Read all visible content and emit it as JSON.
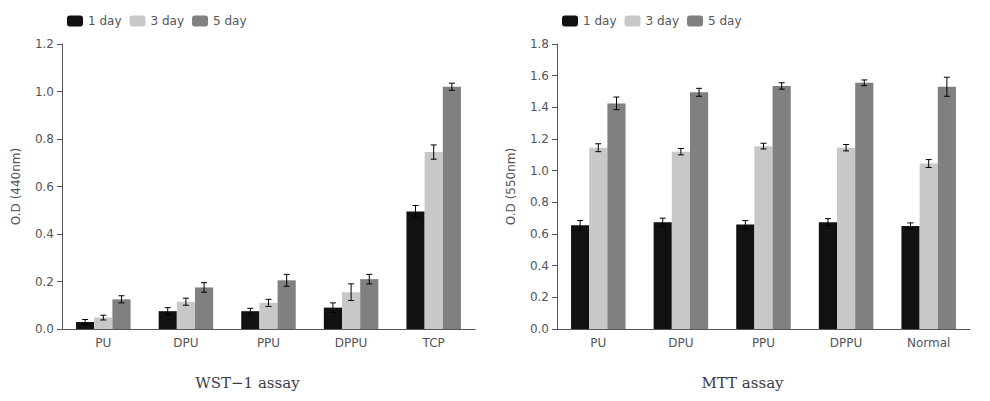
{
  "chart_data": [
    {
      "type": "bar",
      "title": "WST−1 assay",
      "categories": [
        "PU",
        "DPU",
        "PPU",
        "DPPU",
        "TCP"
      ],
      "series": [
        {
          "name": "1 day",
          "color": "#111111",
          "values": [
            0.03,
            0.075,
            0.075,
            0.09,
            0.495
          ],
          "errors": [
            0.01,
            0.015,
            0.012,
            0.02,
            0.025
          ]
        },
        {
          "name": "3 day",
          "color": "#c8c8c8",
          "values": [
            0.048,
            0.115,
            0.11,
            0.155,
            0.745
          ],
          "errors": [
            0.01,
            0.015,
            0.015,
            0.035,
            0.03
          ]
        },
        {
          "name": "5 day",
          "color": "#808080",
          "values": [
            0.125,
            0.175,
            0.205,
            0.21,
            1.02
          ],
          "errors": [
            0.015,
            0.02,
            0.025,
            0.02,
            0.015
          ]
        }
      ],
      "ylabel": "O.D (440nm)",
      "ylim": [
        0,
        1.2
      ],
      "yticks": [
        {
          "value": 0.0,
          "label": "0.0"
        },
        0.2,
        0.4,
        0.6,
        0.8,
        {
          "value": 1.0,
          "label": "1.0"
        },
        1.2
      ],
      "legend": "upper left",
      "grid": false
    },
    {
      "type": "bar",
      "title": "MTT assay",
      "categories": [
        "PU",
        "DPU",
        "PPU",
        "DPPU",
        "Normal"
      ],
      "series": [
        {
          "name": "1 day",
          "color": "#111111",
          "values": [
            0.655,
            0.675,
            0.66,
            0.675,
            0.65
          ],
          "errors": [
            0.03,
            0.025,
            0.025,
            0.022,
            0.02
          ]
        },
        {
          "name": "3 day",
          "color": "#c8c8c8",
          "values": [
            1.145,
            1.12,
            1.155,
            1.145,
            1.045
          ],
          "errors": [
            0.025,
            0.02,
            0.018,
            0.02,
            0.025
          ]
        },
        {
          "name": "5 day",
          "color": "#808080",
          "values": [
            1.425,
            1.495,
            1.535,
            1.555,
            1.53
          ],
          "errors": [
            0.04,
            0.025,
            0.02,
            0.018,
            0.06
          ]
        }
      ],
      "ylabel": "O.D (550nm)",
      "ylim": [
        0,
        1.8
      ],
      "yticks": [
        {
          "value": 0.0,
          "label": "0.0"
        },
        0.2,
        0.4,
        0.6,
        0.8,
        {
          "value": 1.0,
          "label": "1.0"
        },
        1.2,
        1.4,
        1.6,
        1.8
      ],
      "legend": "upper left",
      "grid": false
    }
  ]
}
